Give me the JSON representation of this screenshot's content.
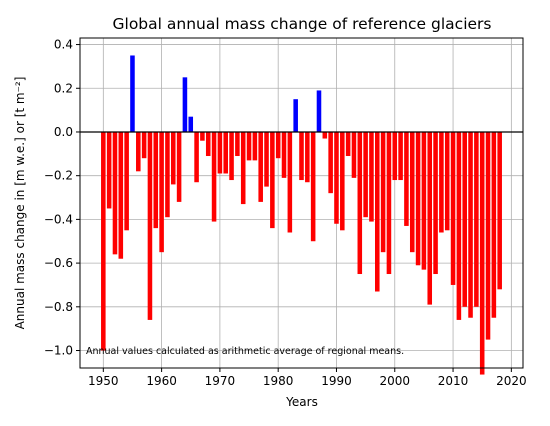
{
  "chart_data": {
    "type": "bar",
    "title": "Global annual mass change of reference glaciers",
    "xlabel": "Years",
    "ylabel": "Annual mass change in [m w.e.] or [t m⁻²]",
    "annotation": "Annual values calculated as arithmetic average of regional means.",
    "xlim": [
      1946,
      2022
    ],
    "ylim": [
      -1.08,
      0.43
    ],
    "xticks": [
      "1950",
      "1960",
      "1970",
      "1980",
      "1990",
      "2000",
      "2010",
      "2020"
    ],
    "yticks": [
      "−1.0",
      "−0.8",
      "−0.6",
      "−0.4",
      "−0.2",
      "0.0",
      "0.2",
      "0.4"
    ],
    "grid": true,
    "colors": {
      "negative": "#ff0000",
      "positive": "#0000ff",
      "zero_line": "#000000"
    },
    "x": [
      1950,
      1951,
      1952,
      1953,
      1954,
      1955,
      1956,
      1957,
      1958,
      1959,
      1960,
      1961,
      1962,
      1963,
      1964,
      1965,
      1966,
      1967,
      1968,
      1969,
      1970,
      1971,
      1972,
      1973,
      1974,
      1975,
      1976,
      1977,
      1978,
      1979,
      1980,
      1981,
      1982,
      1983,
      1984,
      1985,
      1986,
      1987,
      1988,
      1989,
      1990,
      1991,
      1992,
      1993,
      1994,
      1995,
      1996,
      1997,
      1998,
      1999,
      2000,
      2001,
      2002,
      2003,
      2004,
      2005,
      2006,
      2007,
      2008,
      2009,
      2010,
      2011,
      2012,
      2013,
      2014,
      2015,
      2016,
      2017,
      2018
    ],
    "values": [
      -1.0,
      -0.35,
      -0.56,
      -0.58,
      -0.45,
      0.35,
      -0.18,
      -0.12,
      -0.86,
      -0.44,
      -0.55,
      -0.39,
      -0.24,
      -0.32,
      0.25,
      0.07,
      -0.23,
      -0.04,
      -0.11,
      -0.41,
      -0.19,
      -0.19,
      -0.22,
      -0.11,
      -0.33,
      -0.13,
      -0.13,
      -0.32,
      -0.25,
      -0.44,
      -0.12,
      -0.21,
      -0.46,
      0.15,
      -0.22,
      -0.23,
      -0.5,
      0.19,
      -0.03,
      -0.28,
      -0.42,
      -0.45,
      -0.11,
      -0.21,
      -0.65,
      -0.39,
      -0.41,
      -0.73,
      -0.55,
      -0.65,
      -0.22,
      -0.22,
      -0.43,
      -0.55,
      -0.61,
      -0.63,
      -0.79,
      -0.65,
      -0.46,
      -0.45,
      -0.7,
      -0.86,
      -0.8,
      -0.85,
      -0.8,
      -1.11,
      -0.95,
      -0.85,
      -0.72
    ]
  }
}
